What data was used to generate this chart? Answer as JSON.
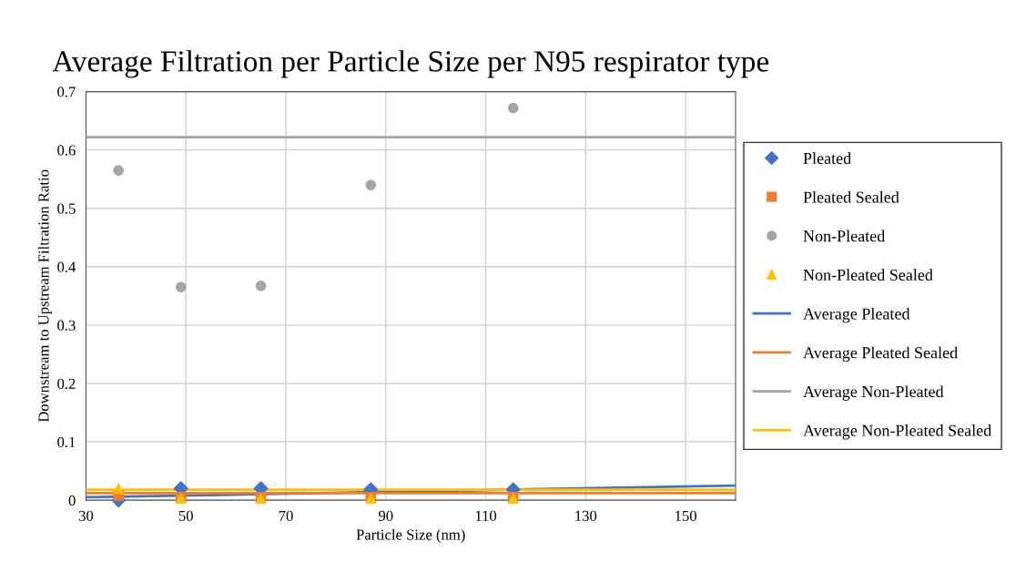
{
  "chart_data": {
    "type": "scatter",
    "title": "Average Filtration per Particle Size per N95 respirator type",
    "xlabel": "Particle Size (nm)",
    "ylabel": "Downstream to Upstream Filtration Ratio",
    "xlim": [
      30,
      160
    ],
    "xticks": [
      30,
      50,
      70,
      90,
      110,
      130,
      150
    ],
    "ylim": [
      0,
      0.7
    ],
    "yticks": [
      0,
      0.1,
      0.2,
      0.3,
      0.4,
      0.5,
      0.6,
      0.7
    ],
    "grid": true,
    "legend": "right",
    "series": [
      {
        "name": "Pleated",
        "marker": "diamond",
        "color": "#4472c4",
        "x": [
          36.5,
          49,
          65,
          87,
          115.5
        ],
        "values": [
          0.0,
          0.02,
          0.02,
          0.018,
          0.018
        ]
      },
      {
        "name": "Pleated Sealed",
        "marker": "square",
        "color": "#ed7d31",
        "x": [
          36.5,
          49,
          65,
          87,
          115.5
        ],
        "values": [
          0.008,
          0.005,
          0.005,
          0.005,
          0.005
        ]
      },
      {
        "name": "Non-Pleated",
        "marker": "circle",
        "color": "#a5a5a5",
        "x": [
          36.5,
          49,
          65,
          87,
          115.5
        ],
        "values": [
          0.565,
          0.365,
          0.367,
          0.54,
          0.672
        ]
      },
      {
        "name": "Non-Pleated Sealed",
        "marker": "triangle",
        "color": "#ffc000",
        "x": [
          36.5,
          49,
          65,
          87,
          115.5
        ],
        "values": [
          0.02,
          0.003,
          0.003,
          0.003,
          0.003
        ]
      },
      {
        "name": "Average Pleated",
        "type": "line",
        "marker": "none",
        "color": "#4472c4",
        "x": [
          30,
          160
        ],
        "values": [
          0.005,
          0.025
        ]
      },
      {
        "name": "Average Pleated Sealed",
        "type": "line",
        "marker": "none",
        "color": "#ed7d31",
        "x": [
          30,
          160
        ],
        "values": [
          0.012,
          0.012
        ]
      },
      {
        "name": "Average Non-Pleated",
        "type": "line",
        "marker": "none",
        "color": "#a5a5a5",
        "x": [
          30,
          160
        ],
        "values": [
          0.622,
          0.622
        ]
      },
      {
        "name": "Average Non-Pleated Sealed",
        "type": "line",
        "marker": "none",
        "color": "#ffc000",
        "x": [
          30,
          160
        ],
        "values": [
          0.018,
          0.018
        ]
      }
    ]
  }
}
